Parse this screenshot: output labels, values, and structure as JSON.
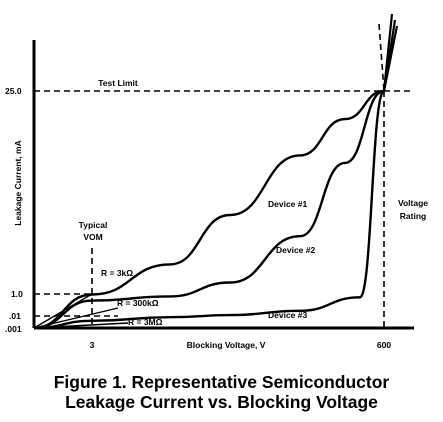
{
  "chart_data": {
    "type": "line",
    "caption_line1": "Figure 1. Representative Semiconductor",
    "caption_line2": "Leakage Current vs. Blocking Voltage",
    "xlabel": "Blocking Voltage, V",
    "ylabel": "Leakage Current, mA",
    "x_ticks": [
      {
        "value": 3,
        "label": "3"
      },
      {
        "value": 600,
        "label": "600"
      }
    ],
    "y_ticks": [
      {
        "value": 25.0,
        "label": "25.0"
      },
      {
        "value": 1.0,
        "label": "1.0"
      },
      {
        "value": 0.01,
        "label": ".01"
      },
      {
        "value": 0.001,
        "label": ".001"
      }
    ],
    "annotations": {
      "test_limit": "Test Limit",
      "voltage_rating_1": "Voltage",
      "voltage_rating_2": "Rating",
      "typical_vom_1": "Typical",
      "typical_vom_2": "VOM",
      "r_3k": "R = 3kΩ",
      "r_300k": "R = 300kΩ",
      "r_3m": "R = 3MΩ"
    },
    "series": [
      {
        "name": "Device #1",
        "x": [
          0,
          3,
          150,
          300,
          450,
          540,
          600
        ],
        "y": [
          0.001,
          0.9,
          1.6,
          3.5,
          9.0,
          16.0,
          25.0
        ]
      },
      {
        "name": "Device #2",
        "x": [
          0,
          3,
          150,
          300,
          450,
          540,
          600
        ],
        "y": [
          0.001,
          0.25,
          0.6,
          1.2,
          2.5,
          8.0,
          25.0
        ]
      },
      {
        "name": "Device #3",
        "x": [
          0,
          3,
          150,
          300,
          450,
          560,
          600
        ],
        "y": [
          0.001,
          0.004,
          0.008,
          0.012,
          0.03,
          0.5,
          25.0
        ]
      }
    ]
  }
}
